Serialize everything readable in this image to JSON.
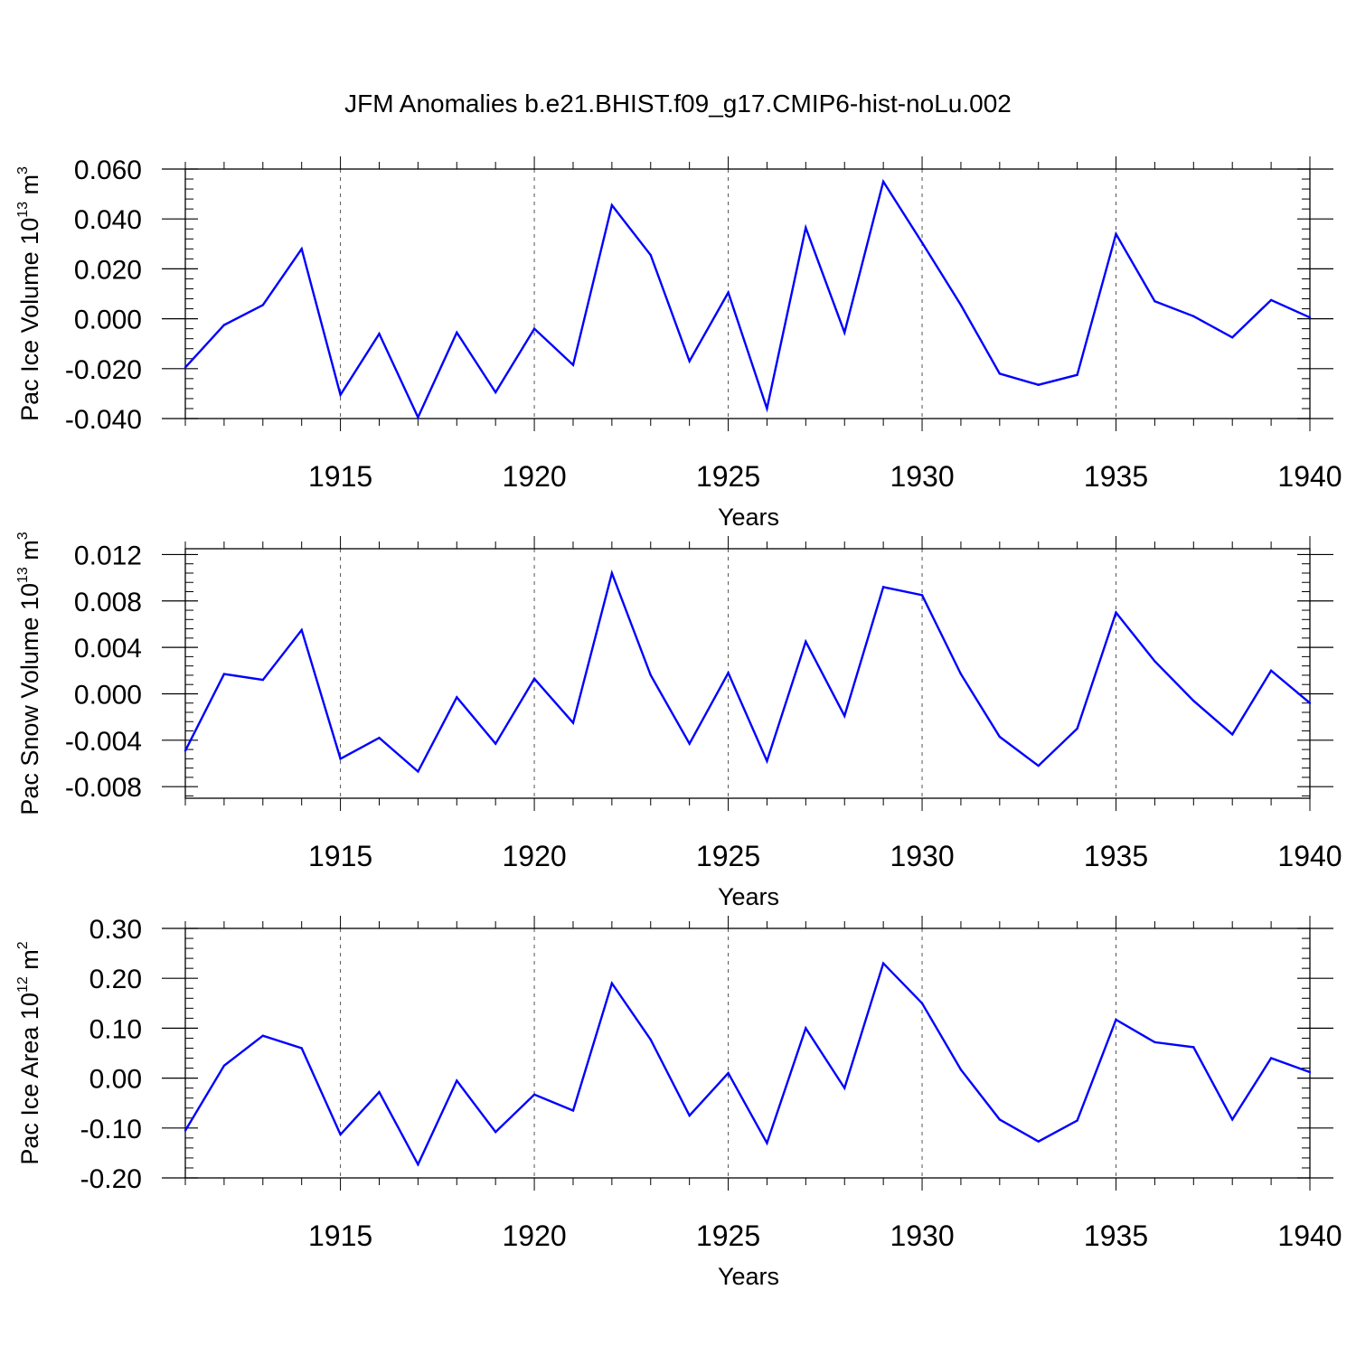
{
  "title": "JFM Anomalies b.e21.BHIST.f09_g17.CMIP6-hist-noLu.002",
  "chart_data": [
    {
      "type": "line",
      "ylabel": "Pac Ice Volume 10",
      "ylabel_exp": "13",
      "ylabel_unit": " m",
      "ylabel_unit_exp": "3",
      "xlabel": "Years",
      "xlim": [
        1911,
        1940
      ],
      "ylim": [
        -0.04,
        0.06
      ],
      "yticks": [
        -0.04,
        -0.02,
        0.0,
        0.02,
        0.04,
        0.06
      ],
      "ytick_labels": [
        "-0.040",
        "-0.020",
        "0.000",
        "0.020",
        "0.040",
        "0.060"
      ],
      "xticks": [
        1915,
        1920,
        1925,
        1930,
        1935,
        1940
      ],
      "xtick_labels": [
        "1915",
        "1920",
        "1925",
        "1930",
        "1935",
        "1940"
      ],
      "grid": "vertical dashed at labeled years",
      "line_color": "#0000ff",
      "x": [
        1911,
        1912,
        1913,
        1914,
        1915,
        1916,
        1917,
        1918,
        1919,
        1920,
        1921,
        1922,
        1923,
        1924,
        1925,
        1926,
        1927,
        1928,
        1929,
        1930,
        1931,
        1932,
        1933,
        1934,
        1935,
        1936,
        1937,
        1938,
        1939,
        1940
      ],
      "values": [
        -0.0195,
        -0.0025,
        0.0055,
        0.028,
        -0.0305,
        -0.006,
        -0.0395,
        -0.0055,
        -0.0295,
        -0.004,
        -0.0185,
        0.0455,
        0.0255,
        -0.017,
        0.0105,
        -0.036,
        0.0365,
        -0.0055,
        0.055,
        0.0305,
        0.0055,
        -0.022,
        -0.0265,
        -0.0225,
        0.034,
        0.007,
        0.001,
        -0.0075,
        0.0075,
        0.0005
      ]
    },
    {
      "type": "line",
      "ylabel": "Pac Snow Volume 10",
      "ylabel_exp": "13",
      "ylabel_unit": " m",
      "ylabel_unit_exp": "3",
      "xlabel": "Years",
      "xlim": [
        1911,
        1940
      ],
      "ylim": [
        -0.009,
        0.0125
      ],
      "yticks": [
        -0.008,
        -0.004,
        0.0,
        0.004,
        0.008,
        0.012
      ],
      "ytick_labels": [
        "-0.008",
        "-0.004",
        "0.000",
        "0.004",
        "0.008",
        "0.012"
      ],
      "xticks": [
        1915,
        1920,
        1925,
        1930,
        1935,
        1940
      ],
      "xtick_labels": [
        "1915",
        "1920",
        "1925",
        "1930",
        "1935",
        "1940"
      ],
      "grid": "vertical dashed at labeled years",
      "line_color": "#0000ff",
      "x": [
        1911,
        1912,
        1913,
        1914,
        1915,
        1916,
        1917,
        1918,
        1919,
        1920,
        1921,
        1922,
        1923,
        1924,
        1925,
        1926,
        1927,
        1928,
        1929,
        1930,
        1931,
        1932,
        1933,
        1934,
        1935,
        1936,
        1937,
        1938,
        1939,
        1940
      ],
      "values": [
        -0.0049,
        0.0017,
        0.0012,
        0.0055,
        -0.0056,
        -0.0038,
        -0.0067,
        -0.0003,
        -0.0043,
        0.0013,
        -0.0025,
        0.0104,
        0.0016,
        -0.0043,
        0.0018,
        -0.0058,
        0.0045,
        -0.0019,
        0.0092,
        0.0085,
        0.0017,
        -0.0037,
        -0.0062,
        -0.003,
        0.007,
        0.0028,
        -0.0006,
        -0.0035,
        0.002,
        -0.0008
      ]
    },
    {
      "type": "line",
      "ylabel": "Pac Ice Area 10",
      "ylabel_exp": "12",
      "ylabel_unit": " m",
      "ylabel_unit_exp": "2",
      "xlabel": "Years",
      "xlim": [
        1911,
        1940
      ],
      "ylim": [
        -0.2,
        0.3
      ],
      "yticks": [
        -0.2,
        -0.1,
        0.0,
        0.1,
        0.2,
        0.3
      ],
      "ytick_labels": [
        "-0.20",
        "-0.10",
        "0.00",
        "0.10",
        "0.20",
        "0.30"
      ],
      "xticks": [
        1915,
        1920,
        1925,
        1930,
        1935,
        1940
      ],
      "xtick_labels": [
        "1915",
        "1920",
        "1925",
        "1930",
        "1935",
        "1940"
      ],
      "grid": "vertical dashed at labeled years",
      "line_color": "#0000ff",
      "x": [
        1911,
        1912,
        1913,
        1914,
        1915,
        1916,
        1917,
        1918,
        1919,
        1920,
        1921,
        1922,
        1923,
        1924,
        1925,
        1926,
        1927,
        1928,
        1929,
        1930,
        1931,
        1932,
        1933,
        1934,
        1935,
        1936,
        1937,
        1938,
        1939,
        1940
      ],
      "values": [
        -0.105,
        0.025,
        0.085,
        0.06,
        -0.113,
        -0.028,
        -0.173,
        -0.005,
        -0.108,
        -0.033,
        -0.065,
        0.19,
        0.077,
        -0.075,
        0.01,
        -0.13,
        0.1,
        -0.02,
        0.23,
        0.15,
        0.017,
        -0.083,
        -0.127,
        -0.085,
        0.117,
        0.072,
        0.062,
        -0.083,
        0.04,
        0.012
      ]
    }
  ]
}
